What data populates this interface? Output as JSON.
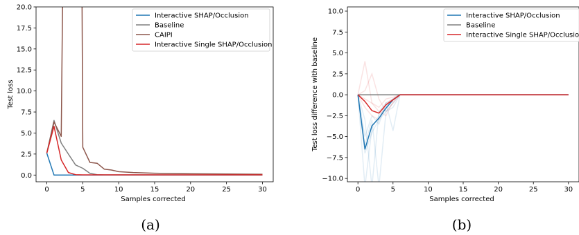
{
  "chart_data": [
    {
      "type": "line",
      "caption": "(a)",
      "xlabel": "Samples corrected",
      "ylabel": "Test loss",
      "xlim": [
        -1.5,
        31.5
      ],
      "ylim": [
        -0.8,
        20
      ],
      "xticks": [
        0,
        5,
        10,
        15,
        20,
        25,
        30
      ],
      "xtick_labels": [
        "0",
        "5",
        "10",
        "15",
        "20",
        "25",
        "30"
      ],
      "yticks": [
        0,
        2.5,
        5,
        7.5,
        10,
        12.5,
        15,
        17.5,
        20
      ],
      "ytick_labels": [
        "0.0",
        "2.5",
        "5.0",
        "7.5",
        "10.0",
        "12.5",
        "15.0",
        "17.5",
        "20.0"
      ],
      "legend_position": "top-right",
      "series": [
        {
          "name": "Interactive SHAP/Occlusion",
          "color": "#1f77b4",
          "x": [
            0,
            1,
            2,
            3,
            4,
            5,
            6,
            10,
            15,
            20,
            25,
            30
          ],
          "y": [
            2.6,
            0.0,
            0.0,
            0.0,
            0.0,
            0.0,
            0.0,
            0.0,
            0.0,
            0.0,
            0.0,
            0.0
          ]
        },
        {
          "name": "Baseline",
          "color": "#7f7f7f",
          "x": [
            0,
            1,
            2,
            3,
            4,
            5,
            6,
            7,
            8,
            9,
            10,
            12,
            15,
            20,
            25,
            30
          ],
          "y": [
            2.6,
            6.5,
            3.8,
            2.5,
            1.2,
            0.8,
            0.2,
            0.05,
            0.02,
            0.02,
            0.02,
            0.02,
            0.02,
            0.02,
            0.02,
            0.02
          ]
        },
        {
          "name": "CAIPI",
          "color": "#8c564b",
          "x": [
            0,
            1,
            2,
            2.2,
            4.9,
            5,
            6,
            7,
            8,
            9,
            10,
            12,
            15,
            20,
            25,
            30
          ],
          "y": [
            2.6,
            6.3,
            4.6,
            21,
            21,
            3.3,
            1.5,
            1.4,
            0.7,
            0.6,
            0.4,
            0.3,
            0.22,
            0.15,
            0.12,
            0.1
          ]
        },
        {
          "name": "Interactive Single SHAP/Occlusion",
          "color": "#d62728",
          "x": [
            0,
            1,
            2,
            3,
            4,
            5,
            6,
            10,
            15,
            20,
            25,
            30
          ],
          "y": [
            2.6,
            5.8,
            1.8,
            0.3,
            0.05,
            0.02,
            0.02,
            0.02,
            0.02,
            0.02,
            0.02,
            0.02
          ]
        }
      ]
    },
    {
      "type": "line",
      "caption": "(b)",
      "xlabel": "Samples corrected",
      "ylabel": "Test loss difference with baseline",
      "xlim": [
        -1.5,
        31.5
      ],
      "ylim": [
        -10.4,
        10.5
      ],
      "xticks": [
        0,
        5,
        10,
        15,
        20,
        25,
        30
      ],
      "xtick_labels": [
        "0",
        "5",
        "10",
        "15",
        "20",
        "25",
        "30"
      ],
      "yticks": [
        -10,
        -7.5,
        -5,
        -2.5,
        0,
        2.5,
        5,
        7.5,
        10
      ],
      "ytick_labels": [
        "−10.0",
        "−7.5",
        "−5.0",
        "−2.5",
        "0.0",
        "2.5",
        "5.0",
        "7.5",
        "10.0"
      ],
      "legend_position": "top-right",
      "faint_runs": [
        {
          "color": "#d62728",
          "x": [
            0,
            1,
            2,
            3,
            4,
            5,
            6
          ],
          "y": [
            0,
            4.0,
            -1.0,
            -1.5,
            -0.5,
            -0.3,
            0
          ]
        },
        {
          "color": "#d62728",
          "x": [
            0,
            1,
            2,
            3,
            4,
            5,
            6
          ],
          "y": [
            0,
            0.5,
            2.5,
            -0.5,
            -2.0,
            -1.0,
            0
          ]
        },
        {
          "color": "#d62728",
          "x": [
            0,
            1,
            2,
            3,
            4,
            5,
            6
          ],
          "y": [
            0,
            -1.5,
            -2.5,
            -3.0,
            -1.0,
            -0.5,
            0
          ]
        },
        {
          "color": "#d62728",
          "x": [
            0,
            1,
            2,
            3,
            4,
            5,
            6
          ],
          "y": [
            0,
            -0.5,
            -1.0,
            -2.0,
            -2.5,
            -0.8,
            0
          ]
        },
        {
          "color": "#1f77b4",
          "x": [
            0,
            1,
            2,
            3,
            4,
            5,
            6
          ],
          "y": [
            0,
            -11,
            -4.0,
            -2.5,
            -1.5,
            -0.5,
            0
          ]
        },
        {
          "color": "#1f77b4",
          "x": [
            0,
            1,
            2,
            3,
            4,
            5,
            6
          ],
          "y": [
            0,
            -3.0,
            -11,
            -2.0,
            -1.0,
            -0.5,
            0
          ]
        },
        {
          "color": "#1f77b4",
          "x": [
            0,
            1,
            2,
            3,
            4,
            5,
            6
          ],
          "y": [
            0,
            -6.0,
            -3.0,
            -11,
            -2.0,
            -1.0,
            0
          ]
        },
        {
          "color": "#1f77b4",
          "x": [
            0,
            1,
            2,
            3,
            4,
            5,
            6
          ],
          "y": [
            0,
            -5.0,
            -2.5,
            -3.5,
            -1.0,
            -4.3,
            0
          ]
        },
        {
          "color": "#1f77b4",
          "x": [
            0,
            1,
            2,
            3,
            4,
            5,
            6
          ],
          "y": [
            0,
            -7.0,
            -4.5,
            -3.0,
            -2.0,
            -1.5,
            0
          ]
        }
      ],
      "series": [
        {
          "name": "Interactive SHAP/Occlusion",
          "color": "#1f77b4",
          "x": [
            0,
            1,
            2,
            3,
            4,
            5,
            6,
            10,
            15,
            20,
            25,
            30
          ],
          "y": [
            0,
            -6.5,
            -3.7,
            -2.8,
            -1.6,
            -0.6,
            0,
            0,
            0,
            0,
            0,
            0
          ]
        },
        {
          "name": "Baseline",
          "color": "#7f7f7f",
          "x": [
            0,
            30
          ],
          "y": [
            0,
            0
          ]
        },
        {
          "name": "Interactive Single SHAP/Occlusion",
          "color": "#d62728",
          "x": [
            0,
            1,
            2,
            3,
            4,
            5,
            6,
            10,
            15,
            20,
            25,
            30
          ],
          "y": [
            0,
            -0.8,
            -1.9,
            -2.2,
            -1.2,
            -0.6,
            0,
            0,
            0,
            0,
            0,
            0
          ]
        }
      ]
    }
  ]
}
